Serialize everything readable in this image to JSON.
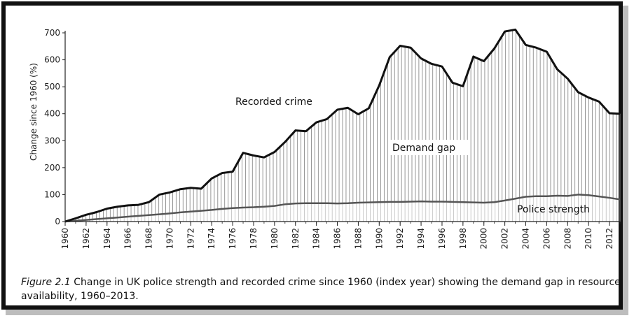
{
  "chart_data": {
    "type": "area",
    "ylabel": "Change since 1960 (%)",
    "xlabel": "",
    "ylim": [
      0,
      700
    ],
    "yticks": [
      0,
      100,
      200,
      300,
      400,
      500,
      600,
      700
    ],
    "xticks": [
      1960,
      1962,
      1964,
      1966,
      1968,
      1970,
      1972,
      1974,
      1976,
      1978,
      1980,
      1982,
      1984,
      1986,
      1988,
      1990,
      1992,
      1994,
      1996,
      1998,
      2000,
      2002,
      2004,
      2006,
      2008,
      2010,
      2012
    ],
    "x": [
      1960,
      1961,
      1962,
      1963,
      1964,
      1965,
      1966,
      1967,
      1968,
      1969,
      1970,
      1971,
      1972,
      1973,
      1974,
      1975,
      1976,
      1977,
      1978,
      1979,
      1980,
      1981,
      1982,
      1983,
      1984,
      1985,
      1986,
      1987,
      1988,
      1989,
      1990,
      1991,
      1992,
      1993,
      1994,
      1995,
      1996,
      1997,
      1998,
      1999,
      2000,
      2001,
      2002,
      2003,
      2004,
      2005,
      2006,
      2007,
      2008,
      2009,
      2010,
      2011,
      2012,
      2013
    ],
    "series": [
      {
        "name": "Recorded crime",
        "values": [
          0,
          12,
          25,
          35,
          48,
          55,
          60,
          62,
          72,
          100,
          108,
          120,
          125,
          122,
          160,
          180,
          185,
          255,
          245,
          238,
          258,
          295,
          338,
          335,
          368,
          380,
          415,
          422,
          398,
          420,
          505,
          610,
          652,
          645,
          605,
          585,
          575,
          515,
          502,
          612,
          595,
          642,
          705,
          712,
          655,
          645,
          630,
          565,
          530,
          480,
          460,
          445,
          402,
          400
        ]
      },
      {
        "name": "Police strength",
        "values": [
          0,
          3,
          6,
          9,
          12,
          15,
          18,
          21,
          24,
          27,
          30,
          34,
          37,
          40,
          43,
          47,
          50,
          52,
          53,
          55,
          58,
          64,
          67,
          68,
          68,
          68,
          67,
          68,
          70,
          71,
          72,
          73,
          73,
          74,
          75,
          74,
          74,
          73,
          72,
          71,
          70,
          72,
          78,
          85,
          92,
          94,
          94,
          96,
          95,
          100,
          98,
          93,
          88,
          82
        ]
      }
    ],
    "annotations": [
      "Recorded crime",
      "Demand gap",
      "Police strength"
    ],
    "grid": false
  },
  "caption": {
    "figure_label": "Figure 2.1",
    "text": " Change in UK police strength and recorded crime since 1960 (index year) showing the demand gap in resource availability, 1960–2013."
  }
}
